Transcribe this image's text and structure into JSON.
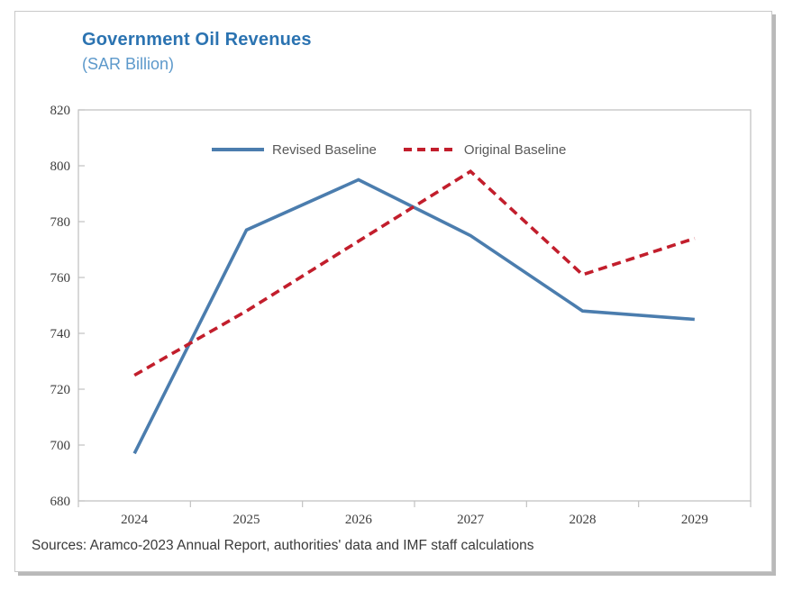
{
  "figure": {
    "title": "Government Oil Revenues",
    "subtitle": "(SAR Billion)",
    "source": "Sources: Aramco-2023 Annual Report, authorities' data and IMF staff calculations"
  },
  "colors": {
    "title": "#2b73b1",
    "subtitle": "#5d99cb",
    "axis": "#c2c2c2",
    "tick_label": "#3d3d3d",
    "legend_text": "#595959",
    "revised_baseline": "#4b7dae",
    "original_baseline": "#c21e2c"
  },
  "chart_data": {
    "type": "line",
    "title": "Government Oil Revenues",
    "subtitle": "(SAR Billion)",
    "categories": [
      "2024",
      "2025",
      "2026",
      "2027",
      "2028",
      "2029"
    ],
    "series": [
      {
        "name": "Revised Baseline",
        "style": "solid",
        "color": "#4b7dae",
        "values": [
          697,
          777,
          795,
          775,
          748,
          745
        ]
      },
      {
        "name": "Original Baseline",
        "style": "dashed",
        "color": "#c21e2c",
        "values": [
          725,
          748,
          773,
          798,
          761,
          774
        ]
      }
    ],
    "ylim": [
      680,
      820
    ],
    "ytick_step": 20,
    "ytick_labels": [
      "680",
      "700",
      "720",
      "740",
      "760",
      "780",
      "800",
      "820"
    ],
    "grid": false,
    "legend_position": "top-center-inside",
    "source": "Sources: Aramco-2023 Annual Report, authorities' data and IMF staff calculations"
  }
}
